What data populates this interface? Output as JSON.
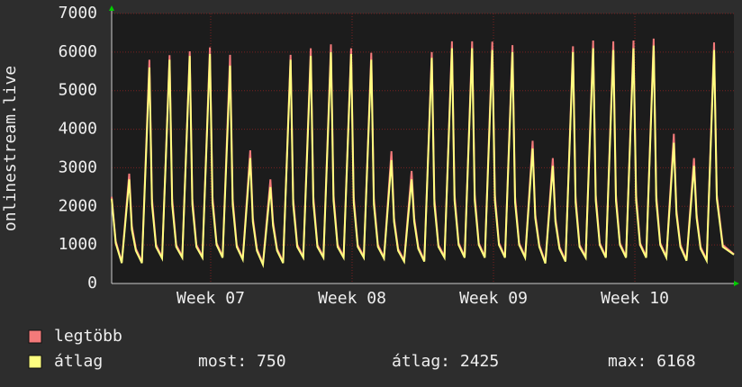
{
  "chart_data": {
    "type": "line",
    "y_label": "onlinestream.live",
    "x": [
      0,
      0.2,
      0.5,
      0.87,
      1,
      1.2,
      1.5,
      1.87,
      2,
      2.2,
      2.5,
      2.87,
      3,
      3.2,
      3.5,
      3.87,
      4,
      4.2,
      4.5,
      4.87,
      5,
      5.2,
      5.5,
      5.87,
      6,
      6.2,
      6.5,
      6.87,
      7,
      7.2,
      7.5,
      7.87,
      8,
      8.2,
      8.5,
      8.87,
      9,
      9.2,
      9.5,
      9.87,
      10,
      10.2,
      10.5,
      10.87,
      11,
      11.2,
      11.5,
      11.87,
      12,
      12.2,
      12.5,
      12.87,
      13,
      13.2,
      13.5,
      13.87,
      14,
      14.2,
      14.5,
      14.87,
      15,
      15.2,
      15.5,
      15.87,
      16,
      16.2,
      16.5,
      16.87,
      17,
      17.2,
      17.5,
      17.87,
      18,
      18.2,
      18.5,
      18.87,
      19,
      19.2,
      19.5,
      19.87,
      20,
      20.2,
      20.5,
      20.87,
      21,
      21.2,
      21.5,
      21.87,
      22,
      22.2,
      22.5,
      22.87,
      23,
      23.2,
      23.5,
      23.87,
      24,
      24.2,
      24.5,
      24.87,
      25,
      25.2,
      25.5,
      25.87,
      26,
      26.2,
      26.5,
      26.87,
      27,
      27.2,
      27.5,
      27.87,
      28,
      28.2,
      28.5,
      28.87,
      29,
      29.2,
      29.5,
      29.87,
      30,
      30.3,
      30.85
    ],
    "series": [
      {
        "name": "legtöbb",
        "color": "#f47a7a",
        "values": [
          2250,
          1100,
          560,
          2850,
          1500,
          900,
          560,
          5800,
          2200,
          1000,
          680,
          5920,
          2200,
          1000,
          700,
          6020,
          2200,
          1000,
          700,
          6120,
          2250,
          1050,
          700,
          5930,
          2200,
          1000,
          650,
          3450,
          1700,
          900,
          520,
          2700,
          1600,
          900,
          560,
          5930,
          2200,
          1000,
          700,
          6100,
          2250,
          1000,
          700,
          6200,
          2300,
          1000,
          700,
          6100,
          2250,
          1000,
          700,
          5980,
          2200,
          1000,
          680,
          3430,
          1700,
          900,
          600,
          2920,
          1700,
          950,
          600,
          6000,
          2200,
          1000,
          700,
          6280,
          2300,
          1050,
          700,
          6280,
          2300,
          1050,
          700,
          6270,
          2300,
          1050,
          700,
          6180,
          2250,
          1050,
          700,
          3700,
          1800,
          1000,
          550,
          3250,
          1700,
          950,
          600,
          6150,
          2250,
          1000,
          700,
          6300,
          2300,
          1050,
          700,
          6280,
          2300,
          1050,
          700,
          6300,
          2300,
          1050,
          700,
          6350,
          2300,
          1050,
          700,
          3880,
          1900,
          1000,
          620,
          3250,
          1800,
          950,
          620,
          6250,
          2300,
          1000,
          760
        ]
      },
      {
        "name": "átlag",
        "color": "#ffff80",
        "values": [
          2200,
          1050,
          530,
          2700,
          1400,
          850,
          530,
          5600,
          2050,
          950,
          650,
          5800,
          2050,
          950,
          670,
          5900,
          2050,
          950,
          670,
          5950,
          2100,
          1000,
          670,
          5650,
          2050,
          950,
          620,
          3250,
          1600,
          850,
          490,
          2500,
          1500,
          850,
          530,
          5800,
          2050,
          950,
          670,
          5900,
          2100,
          950,
          670,
          6000,
          2150,
          950,
          670,
          5950,
          2100,
          950,
          670,
          5800,
          2050,
          950,
          650,
          3200,
          1600,
          850,
          570,
          2700,
          1600,
          900,
          570,
          5850,
          2050,
          950,
          670,
          6100,
          2150,
          1000,
          670,
          6100,
          2150,
          1000,
          670,
          6050,
          2150,
          1000,
          670,
          6000,
          2100,
          1000,
          670,
          3500,
          1700,
          950,
          520,
          3050,
          1600,
          900,
          570,
          6000,
          2100,
          950,
          670,
          6100,
          2150,
          1000,
          670,
          6050,
          2150,
          1000,
          670,
          6100,
          2150,
          1000,
          670,
          6168,
          2150,
          1000,
          670,
          3650,
          1800,
          950,
          590,
          3050,
          1700,
          900,
          590,
          6050,
          2200,
          950,
          750
        ]
      }
    ],
    "xlim": [
      0,
      30.85
    ],
    "xticks": [
      {
        "value": 4.91,
        "label": "Week 07"
      },
      {
        "value": 11.92,
        "label": "Week 08"
      },
      {
        "value": 18.93,
        "label": "Week 09"
      },
      {
        "value": 25.94,
        "label": "Week 10"
      }
    ],
    "ylim": [
      0,
      7000
    ],
    "yticks": [
      0,
      1000,
      2000,
      3000,
      4000,
      5000,
      6000,
      7000
    ],
    "grid": true,
    "summary": [
      "most: 750",
      "átlag: 2425",
      "max: 6168"
    ]
  }
}
